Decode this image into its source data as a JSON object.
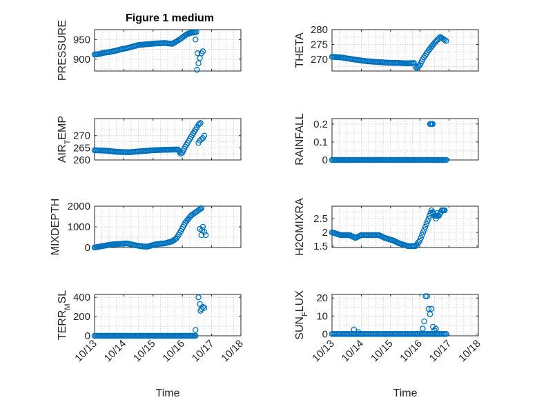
{
  "figure": {
    "title": "Figure 1 medium",
    "marker_color": "#0072BD"
  },
  "chart_data": [
    {
      "type": "scatter",
      "ylabel": "PRESSURE",
      "xlabel": "",
      "xlim": [
        0,
        5
      ],
      "ylim": [
        870,
        975
      ],
      "yticks": [
        900,
        950
      ],
      "ytick_labels": [
        "900",
        "950"
      ],
      "xticks": [
        0,
        1,
        2,
        3,
        4,
        5
      ],
      "xtick_labels": [
        "10/13",
        "10/14",
        "10/15",
        "10/16",
        "10/17",
        "10/18"
      ],
      "show_xtick_labels": false,
      "grid": true,
      "series_anchors": [
        [
          0,
          912
        ],
        [
          0.15,
          913
        ],
        [
          0.3,
          916
        ],
        [
          0.5,
          918
        ],
        [
          0.7,
          921
        ],
        [
          0.9,
          925
        ],
        [
          1.1,
          928
        ],
        [
          1.3,
          932
        ],
        [
          1.5,
          936
        ],
        [
          1.8,
          938
        ],
        [
          2.1,
          940
        ],
        [
          2.4,
          941
        ],
        [
          2.65,
          939
        ],
        [
          2.8,
          945
        ],
        [
          2.95,
          952
        ],
        [
          3.05,
          958
        ],
        [
          3.15,
          963
        ],
        [
          3.25,
          966
        ],
        [
          3.4,
          968
        ],
        [
          3.48,
          969
        ]
      ],
      "extra_points": [
        [
          3.45,
          950
        ],
        [
          3.5,
          873
        ],
        [
          3.55,
          890
        ],
        [
          3.6,
          903
        ],
        [
          3.65,
          915
        ],
        [
          3.7,
          920
        ],
        [
          3.52,
          915
        ]
      ]
    },
    {
      "type": "scatter",
      "ylabel": "THETA",
      "xlabel": "",
      "xlim": [
        0,
        5
      ],
      "ylim": [
        266,
        280
      ],
      "yticks": [
        270,
        275,
        280
      ],
      "ytick_labels": [
        "270",
        "275",
        "280"
      ],
      "xticks": [
        0,
        1,
        2,
        3,
        4,
        5
      ],
      "xtick_labels": [
        "10/13",
        "10/14",
        "10/15",
        "10/16",
        "10/17",
        "10/18"
      ],
      "show_xtick_labels": false,
      "grid": true,
      "series_anchors": [
        [
          0,
          270.8
        ],
        [
          0.3,
          270.6
        ],
        [
          0.7,
          270
        ],
        [
          1.1,
          269.4
        ],
        [
          1.5,
          269.1
        ],
        [
          1.9,
          268.8
        ],
        [
          2.3,
          268.7
        ],
        [
          2.6,
          268.6
        ],
        [
          2.8,
          268.7
        ],
        [
          2.85,
          267.5
        ],
        [
          2.9,
          267
        ],
        [
          3.0,
          268
        ],
        [
          3.1,
          270
        ],
        [
          3.3,
          273
        ],
        [
          3.5,
          275.5
        ],
        [
          3.7,
          277.5
        ],
        [
          3.85,
          276.5
        ],
        [
          3.9,
          276.2
        ]
      ],
      "extra_points": []
    },
    {
      "type": "scatter",
      "ylabel_parts": [
        "AIR",
        "T",
        "EMP"
      ],
      "ylabel": "AIR_TEMP",
      "xlabel": "",
      "xlim": [
        0,
        5
      ],
      "ylim": [
        260,
        277
      ],
      "yticks": [
        260,
        265,
        270
      ],
      "ytick_labels": [
        "260",
        "265",
        "270"
      ],
      "xticks": [
        0,
        1,
        2,
        3,
        4,
        5
      ],
      "xtick_labels": [
        "10/13",
        "10/14",
        "10/15",
        "10/16",
        "10/17",
        "10/18"
      ],
      "show_xtick_labels": false,
      "grid": true,
      "series_anchors": [
        [
          0,
          264
        ],
        [
          0.4,
          263.8
        ],
        [
          0.8,
          263.3
        ],
        [
          1.2,
          263.2
        ],
        [
          1.6,
          263.6
        ],
        [
          2.0,
          264
        ],
        [
          2.5,
          264.2
        ],
        [
          2.85,
          264.3
        ],
        [
          2.95,
          262.6
        ],
        [
          3.0,
          263
        ],
        [
          3.1,
          265.5
        ],
        [
          3.3,
          269.5
        ],
        [
          3.45,
          272.5
        ],
        [
          3.55,
          274.5
        ],
        [
          3.62,
          275.2
        ]
      ],
      "extra_points": [
        [
          3.55,
          267
        ],
        [
          3.6,
          268
        ],
        [
          3.7,
          269
        ],
        [
          3.75,
          270
        ],
        [
          3.65,
          268.5
        ]
      ]
    },
    {
      "type": "scatter",
      "ylabel": "RAINFALL",
      "xlabel": "",
      "xlim": [
        0,
        5
      ],
      "ylim": [
        0,
        0.23
      ],
      "yticks": [
        0,
        0.1,
        0.2
      ],
      "ytick_labels": [
        "0",
        "0.1",
        "0.2"
      ],
      "xticks": [
        0,
        1,
        2,
        3,
        4,
        5
      ],
      "xtick_labels": [
        "10/13",
        "10/14",
        "10/15",
        "10/16",
        "10/17",
        "10/18"
      ],
      "show_xtick_labels": false,
      "grid": true,
      "series_anchors": [
        [
          0,
          0
        ],
        [
          3.9,
          0
        ]
      ],
      "extra_points": [
        [
          3.35,
          0.2
        ],
        [
          3.38,
          0.2
        ],
        [
          3.41,
          0.2
        ],
        [
          3.44,
          0.2
        ]
      ]
    },
    {
      "type": "scatter",
      "ylabel": "MIXDEPTH",
      "xlabel": "",
      "xlim": [
        0,
        5
      ],
      "ylim": [
        0,
        2000
      ],
      "yticks": [
        0,
        1000,
        2000
      ],
      "ytick_labels": [
        "0",
        "1000",
        "2000"
      ],
      "xticks": [
        0,
        1,
        2,
        3,
        4,
        5
      ],
      "xtick_labels": [
        "10/13",
        "10/14",
        "10/15",
        "10/16",
        "10/17",
        "10/18"
      ],
      "show_xtick_labels": false,
      "grid": true,
      "series_anchors": [
        [
          0,
          0
        ],
        [
          0.3,
          80
        ],
        [
          0.6,
          150
        ],
        [
          0.9,
          180
        ],
        [
          1.1,
          200
        ],
        [
          1.35,
          120
        ],
        [
          1.6,
          60
        ],
        [
          1.8,
          40
        ],
        [
          2.1,
          160
        ],
        [
          2.4,
          200
        ],
        [
          2.65,
          300
        ],
        [
          2.8,
          450
        ],
        [
          2.95,
          800
        ],
        [
          3.1,
          1200
        ],
        [
          3.3,
          1550
        ],
        [
          3.45,
          1700
        ],
        [
          3.55,
          1800
        ],
        [
          3.65,
          1900
        ]
      ],
      "extra_points": [
        [
          3.6,
          900
        ],
        [
          3.65,
          600
        ],
        [
          3.7,
          1000
        ],
        [
          3.75,
          750
        ],
        [
          3.8,
          600
        ],
        [
          3.68,
          850
        ]
      ]
    },
    {
      "type": "scatter",
      "ylabel": "H2OMIXRA",
      "xlabel": "",
      "xlim": [
        0,
        5
      ],
      "ylim": [
        1.45,
        2.95
      ],
      "yticks": [
        1.5,
        2,
        2.5
      ],
      "ytick_labels": [
        "1.5",
        "2",
        "2.5"
      ],
      "xticks": [
        0,
        1,
        2,
        3,
        4,
        5
      ],
      "xtick_labels": [
        "10/13",
        "10/14",
        "10/15",
        "10/16",
        "10/17",
        "10/18"
      ],
      "show_xtick_labels": false,
      "grid": true,
      "series_anchors": [
        [
          0,
          2
        ],
        [
          0.3,
          1.9
        ],
        [
          0.6,
          1.9
        ],
        [
          0.8,
          1.8
        ],
        [
          1.0,
          1.9
        ],
        [
          1.2,
          1.9
        ],
        [
          1.6,
          1.9
        ],
        [
          1.8,
          1.8
        ],
        [
          2.1,
          1.7
        ],
        [
          2.3,
          1.6
        ],
        [
          2.6,
          1.5
        ],
        [
          2.85,
          1.5
        ],
        [
          3.0,
          1.7
        ],
        [
          3.15,
          2.1
        ],
        [
          3.3,
          2.5
        ],
        [
          3.4,
          2.8
        ],
        [
          3.5,
          2.6
        ],
        [
          3.65,
          2.6
        ],
        [
          3.75,
          2.8
        ],
        [
          3.85,
          2.8
        ]
      ],
      "extra_points": [
        [
          3.45,
          2.7
        ],
        [
          3.55,
          2.5
        ],
        [
          3.6,
          2.7
        ]
      ]
    },
    {
      "type": "scatter",
      "ylabel_parts": [
        "TERR",
        "M",
        "SL"
      ],
      "ylabel": "TERR_MSL",
      "xlabel": "Time",
      "xlim": [
        0,
        5
      ],
      "ylim": [
        0,
        430
      ],
      "yticks": [
        0,
        200,
        400
      ],
      "ytick_labels": [
        "0",
        "200",
        "400"
      ],
      "xticks": [
        0,
        1,
        2,
        3,
        4,
        5
      ],
      "xtick_labels": [
        "10/13",
        "10/14",
        "10/15",
        "10/16",
        "10/17",
        "10/18"
      ],
      "show_xtick_labels": true,
      "grid": true,
      "series_anchors": [
        [
          0,
          0
        ],
        [
          3.45,
          0
        ]
      ],
      "extra_points": [
        [
          3.45,
          60
        ],
        [
          3.55,
          400
        ],
        [
          3.6,
          330
        ],
        [
          3.65,
          280
        ],
        [
          3.7,
          300
        ],
        [
          3.75,
          290
        ],
        [
          3.62,
          260
        ]
      ]
    },
    {
      "type": "scatter",
      "ylabel_parts": [
        "SUN",
        "F",
        "LUX"
      ],
      "ylabel": "SUN_FLUX",
      "xlabel": "Time",
      "xlim": [
        0,
        5
      ],
      "ylim": [
        -1,
        22
      ],
      "yticks": [
        0,
        10,
        20
      ],
      "ytick_labels": [
        "0",
        "10",
        "20"
      ],
      "xticks": [
        0,
        1,
        2,
        3,
        4,
        5
      ],
      "xtick_labels": [
        "10/13",
        "10/14",
        "10/15",
        "10/16",
        "10/17",
        "10/18"
      ],
      "show_xtick_labels": true,
      "grid": true,
      "series_anchors": [
        [
          0,
          0
        ],
        [
          3.9,
          0
        ]
      ],
      "extra_points": [
        [
          0.75,
          2.5
        ],
        [
          0.9,
          1
        ],
        [
          3.1,
          3
        ],
        [
          3.15,
          7
        ],
        [
          3.2,
          21
        ],
        [
          3.25,
          21
        ],
        [
          3.3,
          14
        ],
        [
          3.35,
          11
        ],
        [
          3.4,
          14
        ],
        [
          3.45,
          4
        ],
        [
          3.5,
          2
        ],
        [
          3.55,
          3
        ]
      ]
    }
  ]
}
